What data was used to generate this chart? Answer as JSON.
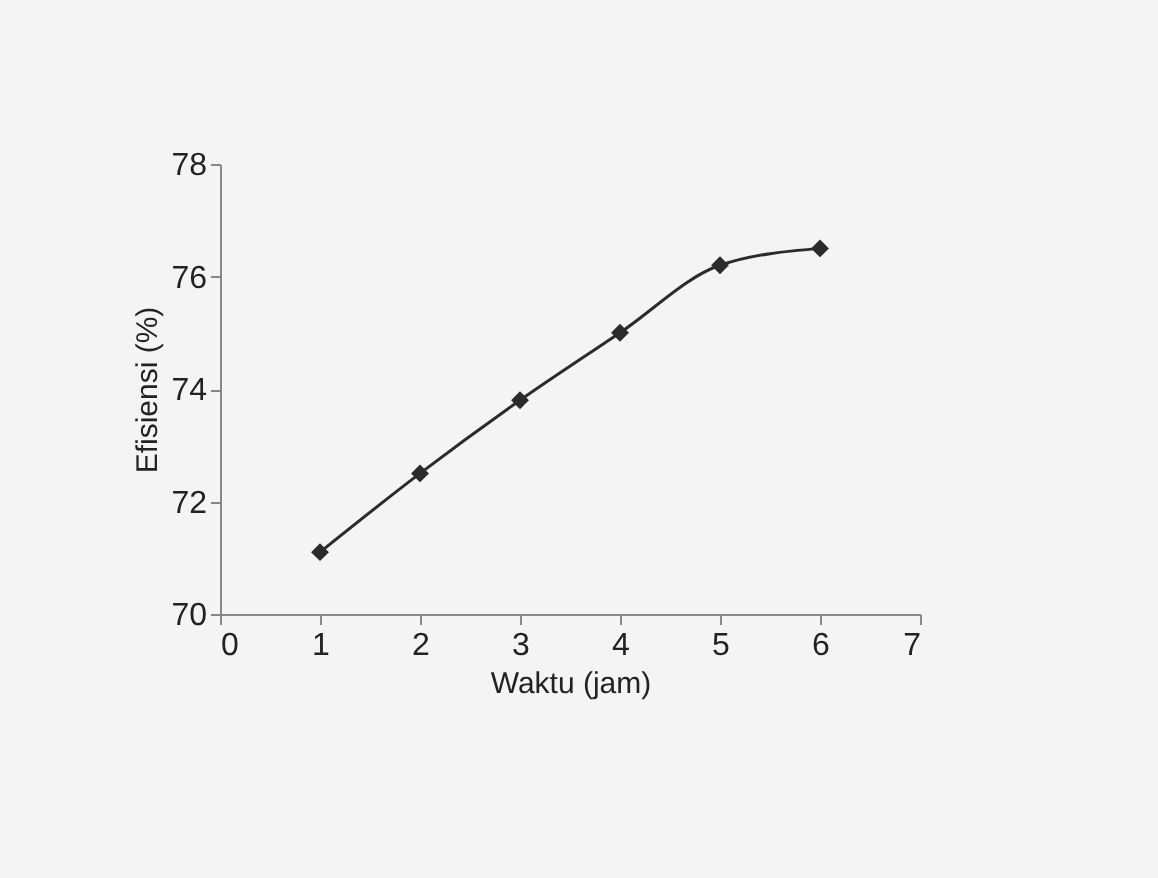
{
  "chart_data": {
    "type": "line",
    "xlabel": "Waktu (jam)",
    "ylabel": "Efisiensi (%)",
    "x": [
      1,
      2,
      3,
      4,
      5,
      6
    ],
    "series": [
      {
        "color": "#2b2b2b",
        "values": [
          71.1,
          72.5,
          73.8,
          75.0,
          76.2,
          76.5
        ]
      }
    ],
    "xlim": [
      0,
      7
    ],
    "xticks": [
      0,
      1,
      2,
      3,
      4,
      5,
      6,
      7
    ],
    "ylim": [
      70,
      78
    ],
    "yticks": [
      70,
      72,
      74,
      76,
      78
    ],
    "grid": false,
    "marker": "diamond",
    "line_style": "solid"
  }
}
